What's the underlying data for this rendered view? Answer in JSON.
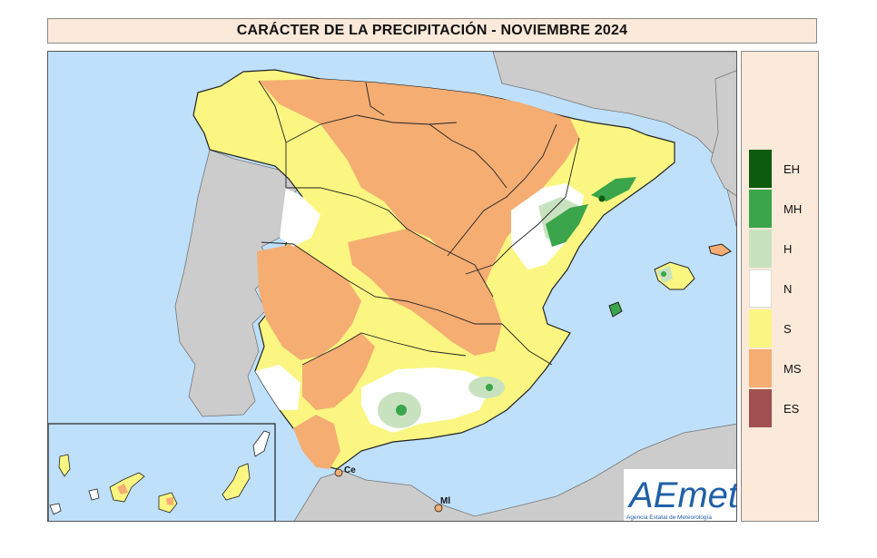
{
  "title": "CARÁCTER DE LA PRECIPITACIÓN - NOVIEMBRE 2024",
  "legend": {
    "items": [
      {
        "code": "EH",
        "color": "#0d5b0d"
      },
      {
        "code": "MH",
        "color": "#3aa54a"
      },
      {
        "code": "H",
        "color": "#c8e2c0"
      },
      {
        "code": "N",
        "color": "#ffffff"
      },
      {
        "code": "S",
        "color": "#fbf681"
      },
      {
        "code": "MS",
        "color": "#f5ad72"
      },
      {
        "code": "ES",
        "color": "#a05050"
      }
    ]
  },
  "map": {
    "place_labels": {
      "ceuta": "Ce",
      "melilla": "Ml"
    },
    "colors": {
      "sea": "#bfe0fb",
      "foreign_land": "#cccccc",
      "border": "#222222"
    }
  },
  "logo": {
    "text": "AEmet",
    "subtitle": "Agencia Estatal de Meteorología"
  }
}
